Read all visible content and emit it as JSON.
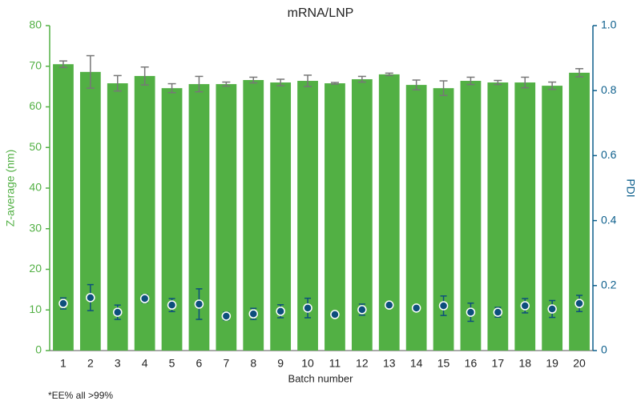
{
  "chart_data": {
    "type": "bar",
    "title": "mRNA/LNP",
    "xlabel": "Batch number",
    "ylabel": "Z-average (nm)",
    "y2label": "PDI",
    "footnote": "*EE% all >99%",
    "categories": [
      "1",
      "2",
      "3",
      "4",
      "5",
      "6",
      "7",
      "8",
      "9",
      "10",
      "11",
      "12",
      "13",
      "14",
      "15",
      "16",
      "17",
      "18",
      "19",
      "20"
    ],
    "series": [
      {
        "type": "bar",
        "color": "#52b044",
        "axis": "y",
        "values": [
          70.5,
          68.6,
          65.8,
          67.6,
          64.6,
          65.6,
          65.6,
          66.6,
          66.0,
          66.4,
          65.8,
          66.8,
          68.0,
          65.4,
          64.6,
          66.4,
          66.0,
          66.0,
          65.2,
          68.4
        ],
        "errors": [
          0.8,
          4.0,
          1.9,
          2.2,
          1.1,
          1.9,
          0.5,
          0.7,
          0.8,
          1.4,
          0.2,
          0.7,
          0.3,
          1.2,
          1.8,
          0.9,
          0.5,
          1.3,
          0.9,
          1.0
        ]
      },
      {
        "type": "scatter",
        "color": "#0d4f7c",
        "axis": "y2",
        "values": [
          0.145,
          0.163,
          0.118,
          0.16,
          0.14,
          0.143,
          0.106,
          0.113,
          0.121,
          0.131,
          0.111,
          0.126,
          0.14,
          0.131,
          0.138,
          0.118,
          0.118,
          0.138,
          0.128,
          0.145
        ],
        "errors": [
          0.017,
          0.04,
          0.022,
          0.012,
          0.02,
          0.047,
          0.012,
          0.017,
          0.02,
          0.03,
          0.005,
          0.017,
          0.005,
          0.005,
          0.03,
          0.028,
          0.015,
          0.022,
          0.026,
          0.025
        ]
      }
    ],
    "ylim": [
      0,
      80
    ],
    "yticks": [
      0,
      10,
      20,
      30,
      40,
      50,
      60,
      70,
      80
    ],
    "y2lim": [
      0,
      1
    ],
    "y2ticks": [
      0,
      0.2,
      0.4,
      0.6,
      0.8,
      {
        "value": 1,
        "label": "1.0"
      }
    ],
    "ycolor": "#52b044",
    "y2color": "#0d5f8c"
  }
}
